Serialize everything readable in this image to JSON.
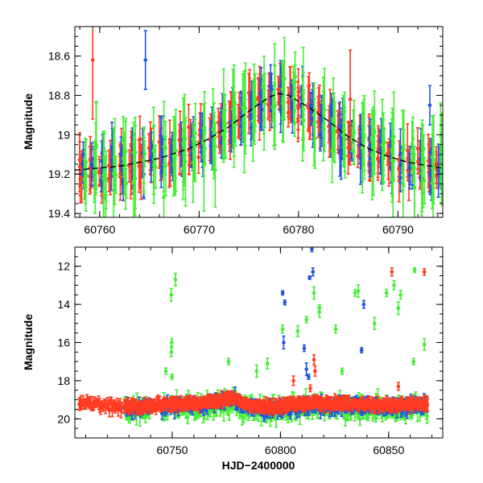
{
  "chart_data": [
    {
      "type": "scatter",
      "title": "",
      "xlabel": "",
      "ylabel": "Magnitude",
      "xlim": [
        60757.5,
        60794.5
      ],
      "ylim": [
        19.42,
        18.45
      ],
      "y_inverted": true,
      "x_ticks": [
        60760,
        60770,
        60780,
        60790
      ],
      "y_ticks": [
        18.6,
        18.8,
        19,
        19.2,
        19.4
      ],
      "grid": false,
      "series": [
        {
          "color": "#ff3b22",
          "marker": "filled-circle",
          "error_bars": true
        },
        {
          "color": "#1f55e0",
          "marker": "filled-circle",
          "error_bars": true
        },
        {
          "color": "#44ee33",
          "marker": "filled-circle",
          "error_bars": true
        }
      ],
      "model_curve": {
        "style": "dashed",
        "color": "#000000",
        "x": [
          60757.5,
          60762,
          60766,
          60769,
          60771,
          60773,
          60775,
          60777,
          60778,
          60779,
          60781,
          60783,
          60785,
          60787,
          60789,
          60791,
          60794.5
        ],
        "y": [
          19.18,
          19.16,
          19.12,
          19.07,
          19.02,
          18.96,
          18.88,
          18.81,
          18.79,
          18.8,
          18.86,
          18.93,
          19.01,
          19.07,
          19.11,
          19.14,
          19.17
        ]
      },
      "observing_nights": [
        60758.3,
        60759.3,
        60760.3,
        60761.3,
        60762.3,
        60763.3,
        60764.3,
        60765.3,
        60766.3,
        60767.3,
        60768.3,
        60769.3,
        60770.3,
        60771.3,
        60772.3,
        60773.3,
        60774.3,
        60775.3,
        60776.3,
        60777.3,
        60778.3,
        60779.3,
        60780.3,
        60781.3,
        60782.3,
        60783.3,
        60784.3,
        60785.3,
        60786.3,
        60787.3,
        60788.3,
        60789.3,
        60790.3,
        60791.3,
        60792.3,
        60793.3,
        60794.2
      ],
      "notable_points": [
        {
          "color": "#ff3b22",
          "x": 60759.3,
          "y": 18.62,
          "err": 0.3
        },
        {
          "color": "#1f55e0",
          "x": 60764.6,
          "y": 18.62,
          "err": 0.15
        },
        {
          "color": "#ff3b22",
          "x": 60785.2,
          "y": 18.82,
          "err": 0.25
        },
        {
          "color": "#1f55e0",
          "x": 60793.2,
          "y": 18.85,
          "err": 0.1
        }
      ]
    },
    {
      "type": "scatter",
      "title": "",
      "xlabel": "HJD−2400000",
      "ylabel": "Magnitude",
      "xlim": [
        60705,
        60875
      ],
      "ylim": [
        21,
        11
      ],
      "y_inverted": true,
      "x_ticks": [
        60750,
        60800,
        60850
      ],
      "y_ticks": [
        12,
        14,
        16,
        18,
        20
      ],
      "grid": false,
      "series": [
        {
          "color": "#ff3b22",
          "marker": "filled-circle",
          "error_bars": true
        },
        {
          "color": "#1f55e0",
          "marker": "filled-circle",
          "error_bars": true
        },
        {
          "color": "#44ee33",
          "marker": "filled-circle",
          "error_bars": true
        }
      ],
      "baseline": {
        "x": [
          60707,
          60728,
          60740,
          60750,
          60760,
          60770,
          60778,
          60785,
          60795,
          60810,
          60830,
          60850,
          60868
        ],
        "y": [
          19.2,
          19.35,
          19.35,
          19.2,
          19.2,
          19.1,
          18.9,
          19.3,
          19.4,
          19.2,
          19.2,
          19.3,
          19.2
        ]
      },
      "red_only_range": [
        60707,
        60727
      ],
      "outliers": [
        {
          "color": "#44ee33",
          "x": 60751.5,
          "y": 12.7
        },
        {
          "color": "#44ee33",
          "x": 60749.5,
          "y": 13.5
        },
        {
          "color": "#44ee33",
          "x": 60749.8,
          "y": 16.0
        },
        {
          "color": "#44ee33",
          "x": 60749.6,
          "y": 16.5
        },
        {
          "color": "#44ee33",
          "x": 60749.9,
          "y": 17.8
        },
        {
          "color": "#1f55e0",
          "x": 60814.5,
          "y": 11.1
        },
        {
          "color": "#1f55e0",
          "x": 60815,
          "y": 12.3
        },
        {
          "color": "#1f55e0",
          "x": 60813.5,
          "y": 12.6
        },
        {
          "color": "#1f55e0",
          "x": 60801,
          "y": 13.4
        },
        {
          "color": "#1f55e0",
          "x": 60802,
          "y": 13.9
        },
        {
          "color": "#1f55e0",
          "x": 60801.5,
          "y": 16.0
        },
        {
          "color": "#1f55e0",
          "x": 60811,
          "y": 16.3
        },
        {
          "color": "#1f55e0",
          "x": 60812,
          "y": 17.4
        },
        {
          "color": "#1f55e0",
          "x": 60838.5,
          "y": 14.0
        },
        {
          "color": "#1f55e0",
          "x": 60837.5,
          "y": 16.4
        },
        {
          "color": "#1f55e0",
          "x": 60813,
          "y": 17.8
        },
        {
          "color": "#ff3b22",
          "x": 60815.5,
          "y": 16.9
        },
        {
          "color": "#ff3b22",
          "x": 60816,
          "y": 17.5
        },
        {
          "color": "#ff3b22",
          "x": 60813.8,
          "y": 18.4
        },
        {
          "color": "#ff3b22",
          "x": 60851.5,
          "y": 12.3
        },
        {
          "color": "#ff3b22",
          "x": 60866.5,
          "y": 12.3
        },
        {
          "color": "#ff3b22",
          "x": 60854.5,
          "y": 18.3
        },
        {
          "color": "#ff3b22",
          "x": 60806,
          "y": 18.0
        },
        {
          "color": "#44ee33",
          "x": 60862,
          "y": 12.2
        },
        {
          "color": "#44ee33",
          "x": 60852.5,
          "y": 13.0
        },
        {
          "color": "#44ee33",
          "x": 60849,
          "y": 13.4
        },
        {
          "color": "#44ee33",
          "x": 60855.5,
          "y": 13.5
        },
        {
          "color": "#44ee33",
          "x": 60854.5,
          "y": 14.2
        },
        {
          "color": "#44ee33",
          "x": 60836,
          "y": 13.3
        },
        {
          "color": "#44ee33",
          "x": 60834.5,
          "y": 13.4
        },
        {
          "color": "#44ee33",
          "x": 60843.5,
          "y": 15.0
        },
        {
          "color": "#44ee33",
          "x": 60815.5,
          "y": 13.4
        },
        {
          "color": "#44ee33",
          "x": 60818,
          "y": 14.2
        },
        {
          "color": "#44ee33",
          "x": 60812,
          "y": 14.8
        },
        {
          "color": "#44ee33",
          "x": 60818,
          "y": 14.4
        },
        {
          "color": "#44ee33",
          "x": 60825.5,
          "y": 15.3
        },
        {
          "color": "#44ee33",
          "x": 60808,
          "y": 15.4
        },
        {
          "color": "#44ee33",
          "x": 60801,
          "y": 15.3
        },
        {
          "color": "#44ee33",
          "x": 60794,
          "y": 17.1
        },
        {
          "color": "#44ee33",
          "x": 60789,
          "y": 17.5
        },
        {
          "color": "#44ee33",
          "x": 60866.5,
          "y": 16.1
        },
        {
          "color": "#44ee33",
          "x": 60861.5,
          "y": 17.0
        },
        {
          "color": "#44ee33",
          "x": 60828.5,
          "y": 17.5
        },
        {
          "color": "#44ee33",
          "x": 60776,
          "y": 17.0
        },
        {
          "color": "#44ee33",
          "x": 60747,
          "y": 17.5
        }
      ]
    }
  ]
}
